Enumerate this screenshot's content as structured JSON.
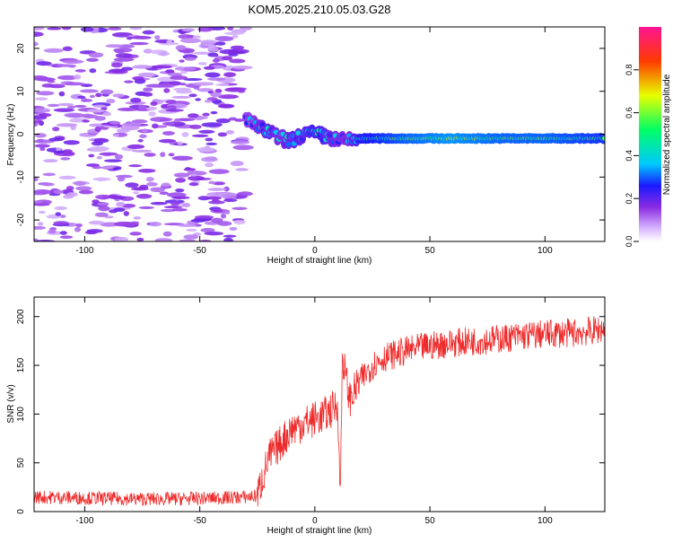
{
  "title": "KOM5.2025.210.05.03.G28",
  "colors": {
    "snr_line": "#ee2a2a",
    "frame": "#000000",
    "colormap": [
      "#ffffff",
      "#d8b7ff",
      "#8a2be2",
      "#1a1aff",
      "#00c8ff",
      "#00ff66",
      "#e8ff00",
      "#ff3b00",
      "#ff1493"
    ]
  },
  "chart_data": [
    {
      "type": "heatmap",
      "xlabel": "Height of straight line (km)",
      "ylabel": "Frequency (Hz)",
      "xlim": [
        -122,
        126
      ],
      "ylim": [
        -25,
        25
      ],
      "xticks": [
        -100,
        -50,
        0,
        50,
        100
      ],
      "yticks": [
        -20,
        -10,
        0,
        10,
        20
      ],
      "grid": false,
      "colorbar": {
        "label": "Normalized spectral amplitude",
        "range": [
          0,
          1
        ],
        "ticks": [
          0.0,
          0.2,
          0.4,
          0.6,
          0.8
        ]
      },
      "ridge": {
        "x": [
          -30,
          -25,
          -20,
          -15,
          -10,
          -5,
          0,
          5,
          10,
          15,
          20,
          40,
          60,
          80,
          100,
          126
        ],
        "frequency_hz": [
          4,
          1.5,
          0.5,
          -1,
          -1.5,
          0,
          0,
          -0.5,
          -1.5,
          -1.5,
          -1,
          -1,
          -1,
          -1,
          -1,
          -1
        ],
        "amplitude": [
          0.25,
          0.3,
          0.35,
          0.3,
          0.35,
          0.35,
          0.4,
          0.35,
          0.3,
          0.3,
          0.45,
          0.55,
          0.6,
          0.55,
          0.55,
          0.5
        ]
      },
      "noise_region": {
        "x_range": [
          -122,
          -30
        ],
        "amplitude": 0.15
      }
    },
    {
      "type": "line",
      "xlabel": "Height of straight line (km)",
      "ylabel": "SNR (v/v)",
      "xlim": [
        -122,
        126
      ],
      "ylim": [
        0,
        220
      ],
      "xticks": [
        -100,
        -50,
        0,
        50,
        100
      ],
      "yticks": [
        0,
        50,
        100,
        150,
        200
      ],
      "grid": false,
      "series": [
        {
          "x": [
            -122,
            -100,
            -80,
            -60,
            -40,
            -30,
            -25,
            -22,
            -20,
            -15,
            -10,
            -5,
            0,
            5,
            10,
            11,
            12,
            15,
            20,
            25,
            30,
            40,
            50,
            60,
            70,
            80,
            90,
            100,
            110,
            120,
            126
          ],
          "values": [
            15,
            14,
            13,
            13,
            14,
            15,
            16,
            40,
            55,
            70,
            85,
            90,
            95,
            100,
            110,
            12,
            160,
            115,
            135,
            150,
            158,
            165,
            170,
            173,
            175,
            177,
            180,
            182,
            183,
            185,
            188
          ]
        }
      ]
    }
  ]
}
